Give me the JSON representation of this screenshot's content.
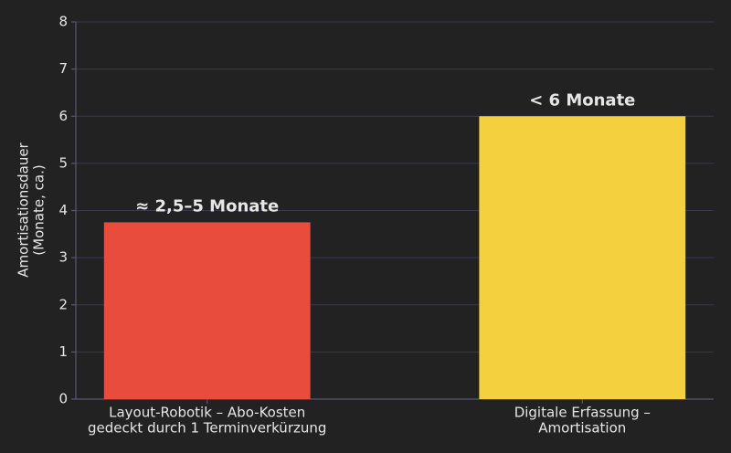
{
  "chart_data": {
    "type": "bar",
    "y_label": "Amortisationsdauer\n(Monate, ca.)",
    "categories": [
      "Layout-Robotik – Abo-Kosten\ngedeckt durch 1 Terminverkürzung",
      "Digitale Erfassung –\nAmortisation"
    ],
    "values": [
      3.75,
      6
    ],
    "value_labels": [
      "≈ 2,5–5 Monate",
      "< 6 Monate"
    ],
    "colors": [
      "#e74c3c",
      "#f4d03f"
    ],
    "ylim": [
      0,
      8
    ],
    "yticks": [
      0,
      1,
      2,
      3,
      4,
      5,
      6,
      7,
      8
    ],
    "grid": true
  }
}
